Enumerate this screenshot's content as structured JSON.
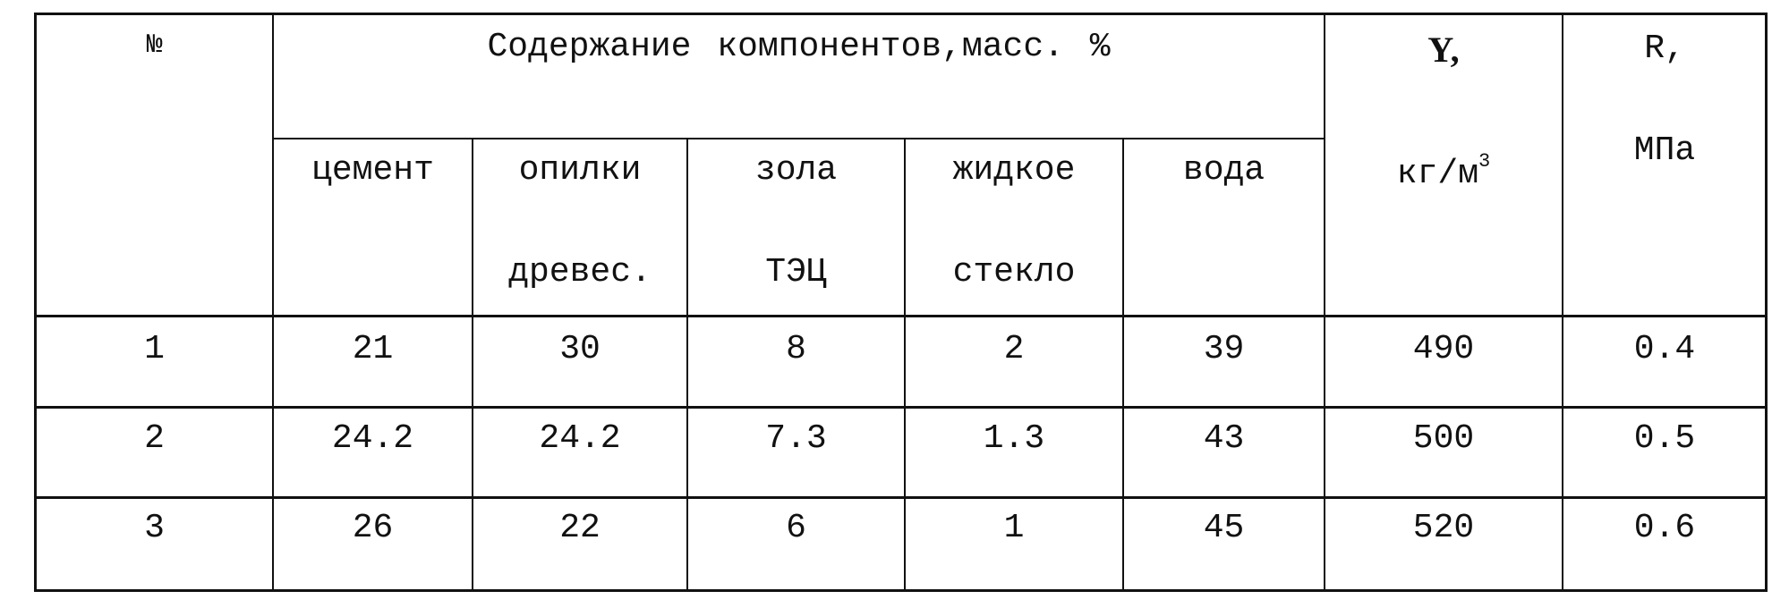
{
  "table": {
    "header": {
      "num": "№",
      "group": "Содержание компонентов,масс. %",
      "sub": [
        [
          "цемент",
          ""
        ],
        [
          "опилки",
          "древес."
        ],
        [
          "зола",
          "ТЭЦ"
        ],
        [
          "жидкое",
          "стекло"
        ],
        [
          "вода",
          ""
        ]
      ],
      "y_symbol": "Y,",
      "y_unit": "кг/м",
      "y_unit_sup": "3",
      "r_symbol": "R,",
      "r_unit": "МПа"
    },
    "rows": [
      [
        "1",
        "21",
        "30",
        "8",
        "2",
        "39",
        "490",
        "0.4"
      ],
      [
        "2",
        "24.2",
        "24.2",
        "7.3",
        "1.3",
        "43",
        "500",
        "0.5"
      ],
      [
        "3",
        "26",
        "22",
        "6",
        "1",
        "45",
        "520",
        "0.6"
      ]
    ]
  }
}
